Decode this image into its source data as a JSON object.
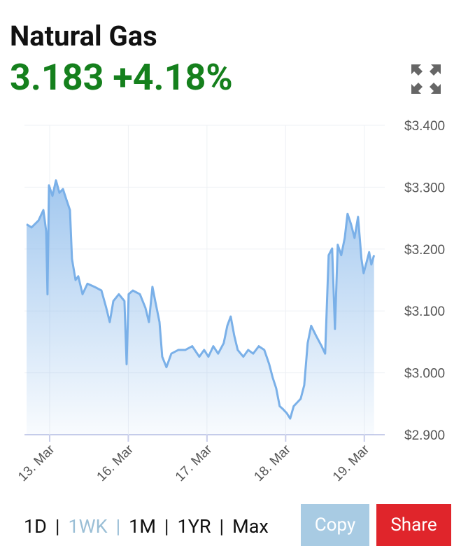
{
  "header": {
    "title": "Natural Gas",
    "price": "3.183",
    "change": "+4.18%"
  },
  "chart_data": {
    "type": "area",
    "color": "#7ab0e8",
    "grid": true,
    "xlim": [
      -0.32,
      4.26
    ],
    "xticks": [
      {
        "value": 0,
        "label": "13. Mar"
      },
      {
        "value": 1,
        "label": "16. Mar"
      },
      {
        "value": 2,
        "label": "17. Mar"
      },
      {
        "value": 3,
        "label": "18. Mar"
      },
      {
        "value": 4,
        "label": "19. Mar"
      }
    ],
    "ylim": [
      2.9,
      3.4
    ],
    "yticks": [
      {
        "value": 2.9,
        "label": "$2.900"
      },
      {
        "value": 3.0,
        "label": "$3.000"
      },
      {
        "value": 3.1,
        "label": "$3.100"
      },
      {
        "value": 3.2,
        "label": "$3.200"
      },
      {
        "value": 3.3,
        "label": "$3.300"
      },
      {
        "value": 3.4,
        "label": "$3.400"
      }
    ],
    "x": [
      -0.293,
      -0.231,
      -0.142,
      -0.08,
      -0.044,
      -0.027,
      -0.009,
      0.036,
      0.08,
      0.124,
      0.169,
      0.213,
      0.258,
      0.284,
      0.329,
      0.364,
      0.418,
      0.48,
      0.569,
      0.658,
      0.72,
      0.764,
      0.809,
      0.88,
      0.951,
      0.978,
      1.004,
      1.058,
      1.147,
      1.218,
      1.262,
      1.307,
      1.342,
      1.396,
      1.431,
      1.484,
      1.547,
      1.636,
      1.724,
      1.813,
      1.902,
      1.964,
      2.018,
      2.08,
      2.142,
      2.213,
      2.258,
      2.302,
      2.347,
      2.391,
      2.462,
      2.524,
      2.587,
      2.658,
      2.729,
      2.791,
      2.836,
      2.88,
      2.924,
      2.969,
      3.013,
      3.058,
      3.102,
      3.147,
      3.191,
      3.236,
      3.28,
      3.324,
      3.387,
      3.458,
      3.502,
      3.547,
      3.591,
      3.627,
      3.662,
      3.707,
      3.751,
      3.787,
      3.831,
      3.876,
      3.92,
      3.964,
      3.991,
      4.027,
      4.062,
      4.089,
      4.124
    ],
    "series": [
      {
        "values": [
          3.24,
          3.235,
          3.246,
          3.263,
          3.229,
          3.127,
          3.303,
          3.286,
          3.311,
          3.291,
          3.297,
          3.28,
          3.263,
          3.184,
          3.15,
          3.156,
          3.127,
          3.144,
          3.139,
          3.133,
          3.105,
          3.082,
          3.116,
          3.127,
          3.116,
          3.014,
          3.127,
          3.133,
          3.127,
          3.105,
          3.082,
          3.139,
          3.116,
          3.082,
          3.026,
          3.009,
          3.031,
          3.037,
          3.037,
          3.043,
          3.026,
          3.037,
          3.026,
          3.043,
          3.031,
          3.048,
          3.076,
          3.091,
          3.06,
          3.037,
          3.026,
          3.037,
          3.031,
          3.043,
          3.037,
          3.014,
          2.992,
          2.975,
          2.946,
          2.941,
          2.935,
          2.926,
          2.946,
          2.952,
          2.958,
          2.98,
          3.048,
          3.076,
          3.06,
          3.043,
          3.031,
          3.19,
          3.201,
          3.071,
          3.207,
          3.19,
          3.218,
          3.257,
          3.24,
          3.218,
          3.252,
          3.184,
          3.161,
          3.178,
          3.195,
          3.175,
          3.19
        ]
      }
    ]
  },
  "controls": {
    "periods": [
      "1D",
      "1WK",
      "1M",
      "1YR",
      "Max"
    ],
    "separator": "|",
    "selected": "1WK",
    "copy": "Copy",
    "share": "Share"
  }
}
